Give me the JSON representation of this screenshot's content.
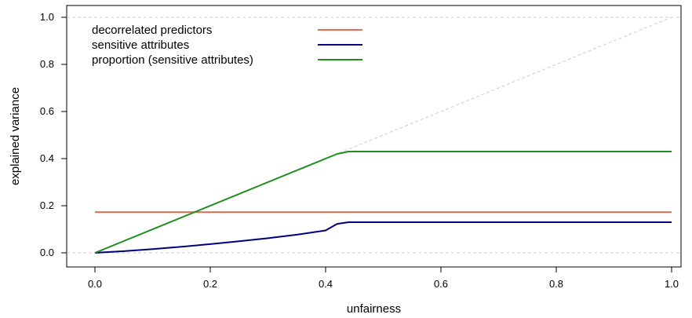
{
  "chart_data": {
    "type": "line",
    "xlabel": "unfairness",
    "ylabel": "explained variance",
    "xlim": [
      0.0,
      1.0
    ],
    "ylim": [
      0.0,
      1.0
    ],
    "xticks": [
      "0.0",
      "0.2",
      "0.4",
      "0.6",
      "0.8",
      "1.0"
    ],
    "yticks": [
      "0.0",
      "0.2",
      "0.4",
      "0.6",
      "0.8",
      "1.0"
    ],
    "grid": false,
    "reference_lines": [
      {
        "kind": "identity",
        "from": [
          0,
          0
        ],
        "to": [
          1,
          1
        ],
        "color": "#cccccc",
        "dashed": true
      },
      {
        "kind": "horizontal",
        "y": 0.0,
        "color": "#cccccc",
        "dashed": true
      },
      {
        "kind": "horizontal",
        "y": 1.0,
        "color": "#cccccc",
        "dashed": true
      }
    ],
    "legend_position": "top-left",
    "series": [
      {
        "name": "decorrelated predictors",
        "color": "#ee6a50",
        "x": [
          0.0,
          0.1,
          0.2,
          0.3,
          0.42,
          0.44,
          0.6,
          0.8,
          1.0
        ],
        "y": [
          0.173,
          0.173,
          0.173,
          0.173,
          0.173,
          0.173,
          0.173,
          0.173,
          0.173
        ]
      },
      {
        "name": "sensitive attributes",
        "color": "#00007f",
        "x": [
          0.0,
          0.05,
          0.1,
          0.15,
          0.2,
          0.25,
          0.3,
          0.35,
          0.4,
          0.42,
          0.44,
          0.6,
          0.8,
          1.0
        ],
        "y": [
          0.0,
          0.007,
          0.016,
          0.026,
          0.037,
          0.049,
          0.062,
          0.077,
          0.095,
          0.123,
          0.13,
          0.13,
          0.13,
          0.13
        ]
      },
      {
        "name": "proportion (sensitive attributes)",
        "color": "#1f8f1f",
        "x": [
          0.0,
          0.42,
          0.44,
          0.6,
          0.8,
          1.0
        ],
        "y": [
          0.0,
          0.42,
          0.43,
          0.43,
          0.43,
          0.43
        ]
      }
    ]
  }
}
